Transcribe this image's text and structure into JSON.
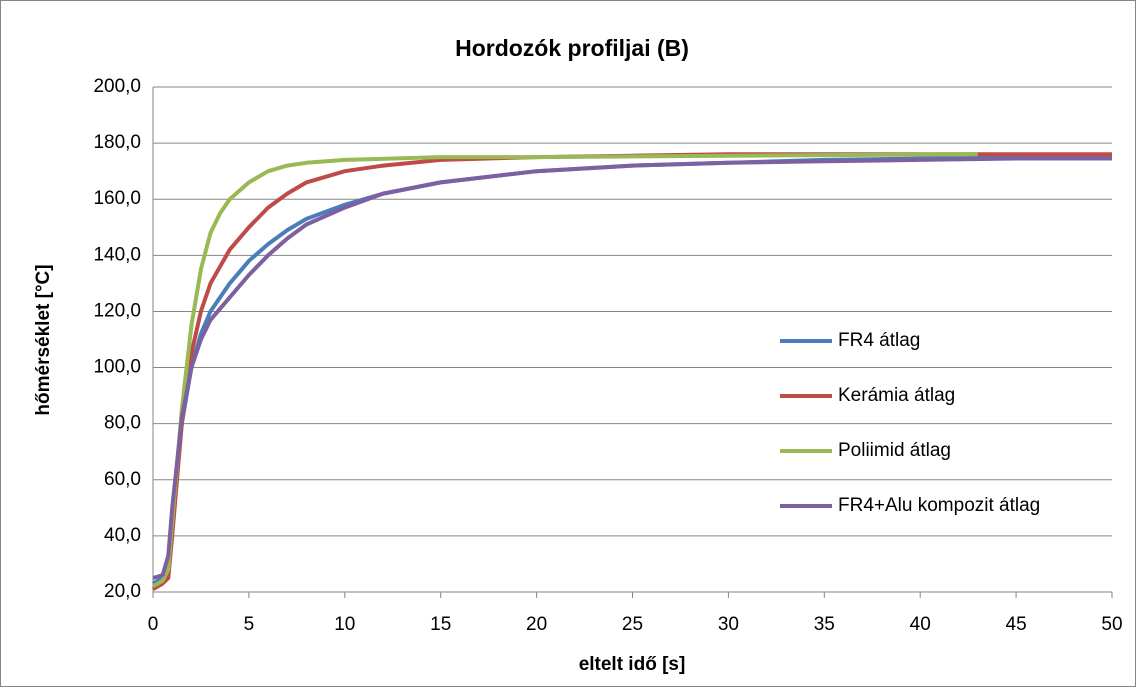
{
  "chart_data": {
    "type": "line",
    "title": "Hordozók profiljai (B)",
    "xlabel": "eltelt idő [s]",
    "ylabel": "hőmérséklet [°C]",
    "xlim": [
      0,
      50
    ],
    "xticks": [
      0,
      5,
      10,
      15,
      20,
      25,
      30,
      35,
      40,
      45,
      50
    ],
    "ylim": [
      20,
      200
    ],
    "yticks": [
      {
        "value": 20,
        "label": "20,0"
      },
      {
        "value": 40,
        "label": "40,0"
      },
      {
        "value": 60,
        "label": "60,0"
      },
      {
        "value": 80,
        "label": "80,0"
      },
      {
        "value": 100,
        "label": "100,0"
      },
      {
        "value": 120,
        "label": "120,0"
      },
      {
        "value": 140,
        "label": "140,0"
      },
      {
        "value": 160,
        "label": "160,0"
      },
      {
        "value": 180,
        "label": "180,0"
      },
      {
        "value": 200,
        "label": "200,0"
      }
    ],
    "grid": true,
    "legend": "right",
    "series": [
      {
        "name": "FR4 átlag",
        "color": "#4a7ebb",
        "x": [
          0,
          0.5,
          0.8,
          1,
          1.5,
          2,
          2.5,
          3,
          4,
          5,
          6,
          7,
          8,
          10,
          12,
          15,
          20,
          25,
          30,
          35,
          40,
          45,
          50
        ],
        "values": [
          23,
          25,
          30,
          45,
          80,
          100,
          112,
          120,
          130,
          138,
          144,
          149,
          153,
          158,
          162,
          166,
          170,
          172,
          173,
          174,
          174.5,
          175,
          175
        ]
      },
      {
        "name": "Kerámia átlag",
        "color": "#be4b48",
        "x": [
          0,
          0.5,
          0.8,
          1,
          1.5,
          2,
          2.5,
          3,
          4,
          5,
          6,
          7,
          8,
          10,
          12,
          15,
          20,
          25,
          30,
          40,
          50
        ],
        "values": [
          21,
          23,
          25,
          40,
          80,
          105,
          120,
          130,
          142,
          150,
          157,
          162,
          166,
          170,
          172,
          174,
          175,
          175.5,
          176,
          176,
          176
        ]
      },
      {
        "name": "Poliimid átlag",
        "color": "#98b954",
        "x": [
          0,
          0.5,
          0.8,
          1,
          1.5,
          2,
          2.5,
          3,
          3.5,
          4,
          5,
          6,
          7,
          8,
          10,
          15,
          20,
          30,
          43
        ],
        "values": [
          22,
          24,
          28,
          45,
          85,
          115,
          135,
          148,
          155,
          160,
          166,
          170,
          172,
          173,
          174,
          175,
          175,
          175.5,
          176
        ]
      },
      {
        "name": "FR4+Alu kompozit átlag",
        "color": "#7d60a0",
        "x": [
          0,
          0.5,
          0.8,
          1,
          1.5,
          2,
          2.5,
          3,
          4,
          5,
          6,
          7,
          8,
          10,
          12,
          15,
          20,
          25,
          30,
          35,
          40,
          45,
          50
        ],
        "values": [
          25,
          26,
          33,
          50,
          82,
          100,
          110,
          117,
          125,
          133,
          140,
          146,
          151,
          157,
          162,
          166,
          170,
          172,
          173,
          173.5,
          174,
          174.5,
          174.5
        ]
      }
    ]
  }
}
